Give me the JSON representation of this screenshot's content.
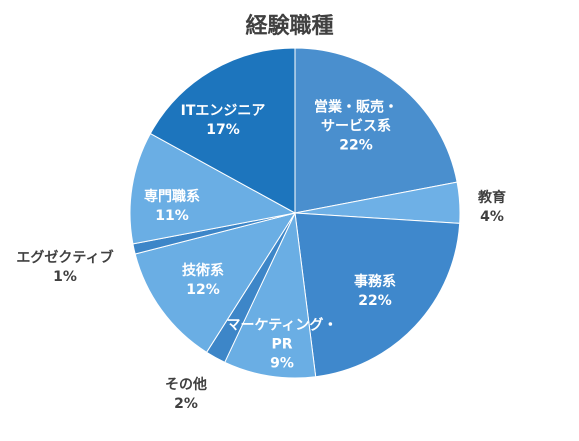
{
  "chart_data": {
    "type": "pie",
    "title": "経験職種",
    "slices": [
      {
        "label": "営業・販売・\nサービス系",
        "value": 22,
        "pct": "22%",
        "color": "#4a8fce",
        "inside": true
      },
      {
        "label": "教育",
        "value": 4,
        "pct": "4%",
        "color": "#6eb0e6",
        "inside": false
      },
      {
        "label": "事務系",
        "value": 22,
        "pct": "22%",
        "color": "#3f88cc",
        "inside": true
      },
      {
        "label": "マーケティング・\nPR",
        "value": 9,
        "pct": "9%",
        "color": "#6aaee4",
        "inside": true
      },
      {
        "label": "その他",
        "value": 2,
        "pct": "2%",
        "color": "#3d86c8",
        "inside": false
      },
      {
        "label": "技術系",
        "value": 12,
        "pct": "12%",
        "color": "#6aaee4",
        "inside": true
      },
      {
        "label": "エグゼクティブ",
        "value": 1,
        "pct": "1%",
        "color": "#3d86c8",
        "inside": false
      },
      {
        "label": "専門職系",
        "value": 11,
        "pct": "11%",
        "color": "#6aaee4",
        "inside": true
      },
      {
        "label": "ITエンジニア",
        "value": 17,
        "pct": "17%",
        "color": "#1d75bd",
        "inside": true
      }
    ]
  }
}
